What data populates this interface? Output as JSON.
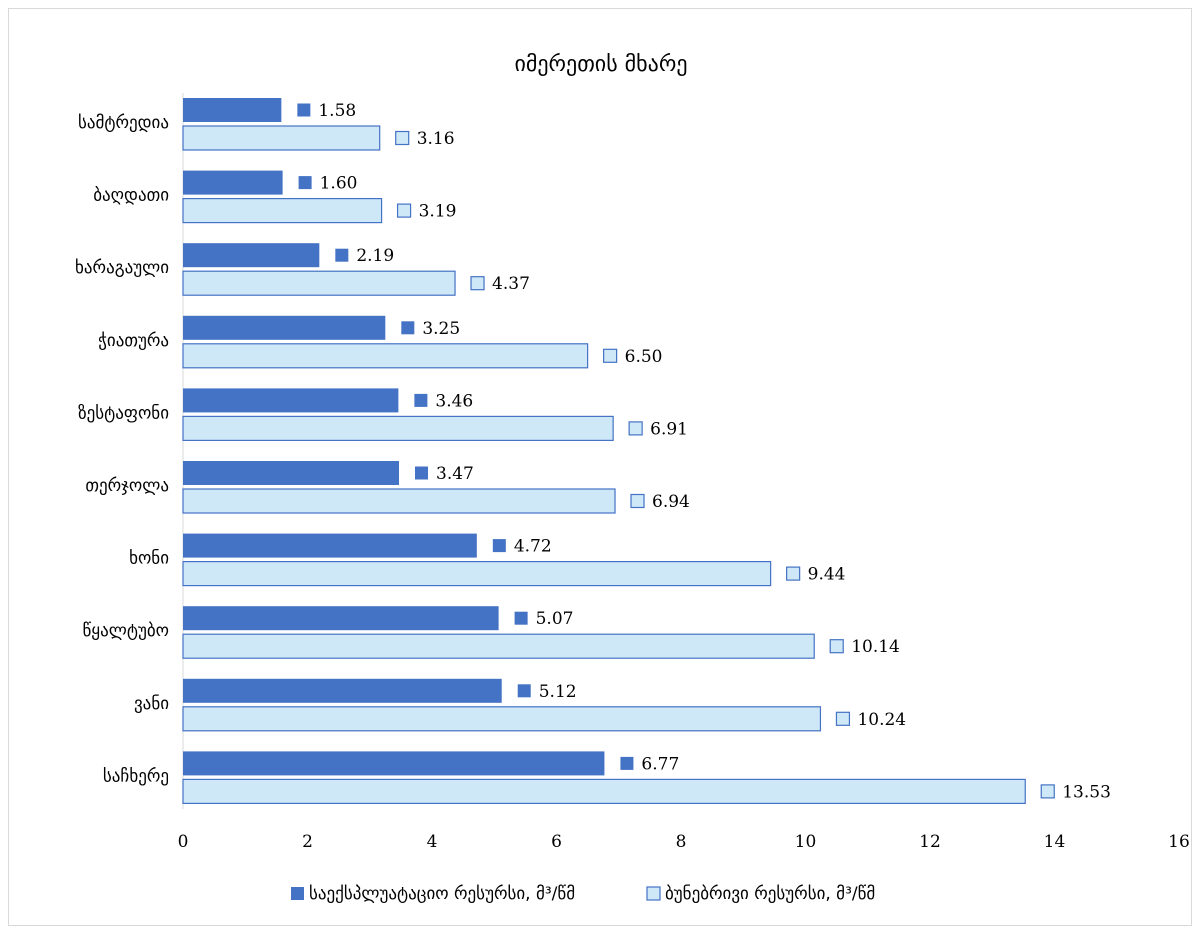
{
  "chart_data": {
    "type": "bar",
    "orientation": "horizontal",
    "title": "იმერეთის მხარე",
    "categories": [
      "სამტრედია",
      "ბაღდათი",
      "ხარაგაული",
      "ჭიათურა",
      "ზესტაფონი",
      "თერჯოლა",
      "ხონი",
      "წყალტუბო",
      "ვანი",
      "საჩხერე"
    ],
    "series": [
      {
        "name": "საექსპლუატაციო რესურსი, მ³/წმ",
        "color": "#4472c4",
        "values": [
          1.58,
          1.6,
          2.19,
          3.25,
          3.46,
          3.47,
          4.72,
          5.07,
          5.12,
          6.77
        ],
        "labels": [
          "1.58",
          "1.60",
          "2.19",
          "3.25",
          "3.46",
          "3.47",
          "4.72",
          "5.07",
          "5.12",
          "6.77"
        ]
      },
      {
        "name": "ბუნებრივი რესურსი, მ³/წმ",
        "color": "#cfe8f8",
        "values": [
          3.16,
          3.19,
          4.37,
          6.5,
          6.91,
          6.94,
          9.44,
          10.14,
          10.24,
          13.53
        ],
        "labels": [
          "3.16",
          "3.19",
          "4.37",
          "6.50",
          "6.91",
          "6.94",
          "9.44",
          "10.14",
          "10.24",
          "13.53"
        ]
      }
    ],
    "xlim": [
      0,
      16
    ],
    "xticks": [
      "0",
      "2",
      "4",
      "6",
      "8",
      "10",
      "12",
      "14",
      "16"
    ],
    "xlabel": "",
    "ylabel": "",
    "grid": false,
    "legend_position": "bottom",
    "outline_color": "#4472c4"
  }
}
